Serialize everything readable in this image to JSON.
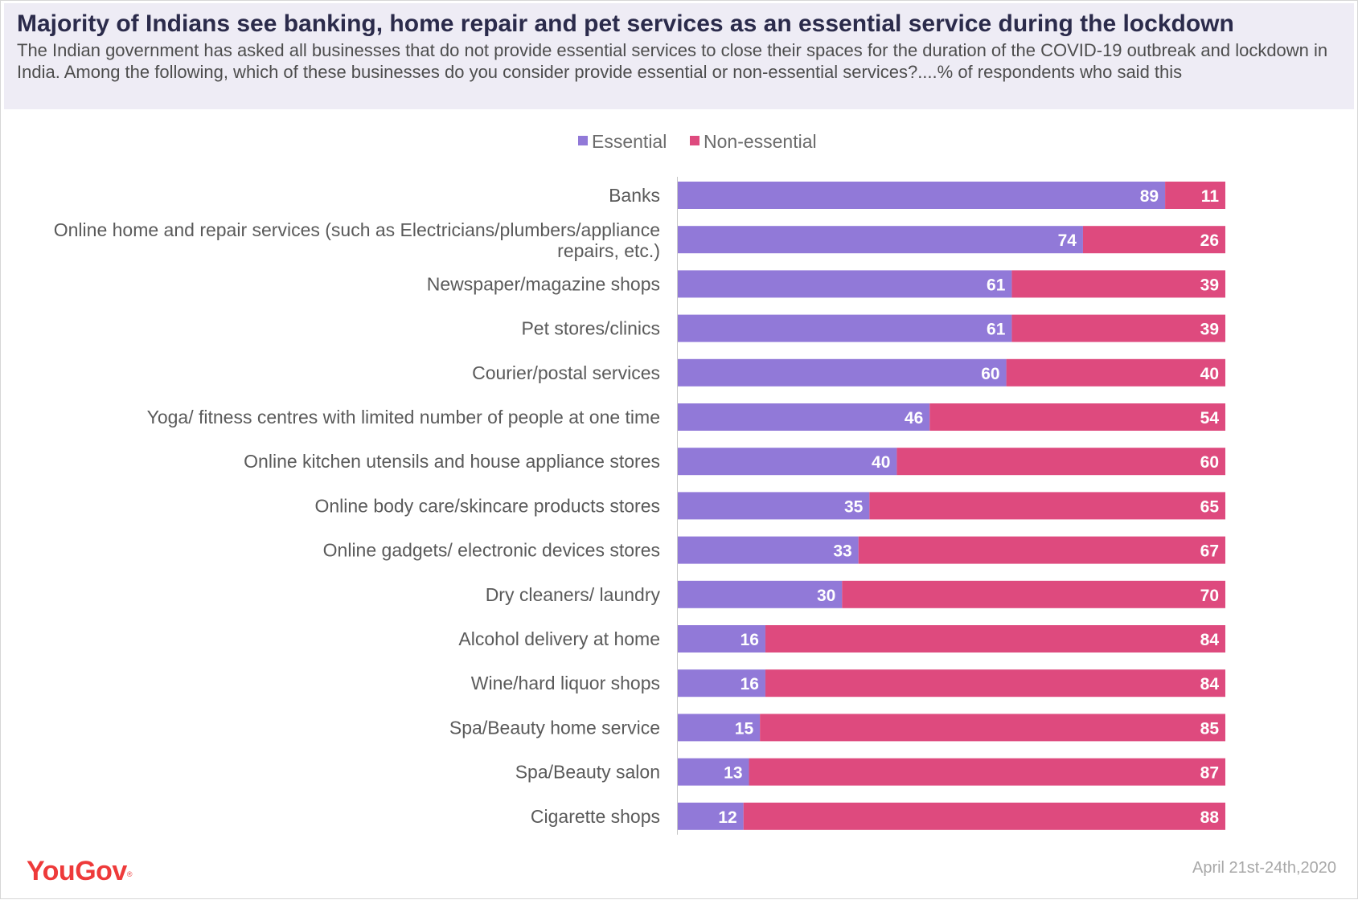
{
  "header": {
    "title": "Majority of Indians see banking, home repair and pet services  as an essential service during the lockdown",
    "subtitle": "The Indian government has asked all businesses that do not provide essential services to close their spaces for the duration of the COVID-19 outbreak and lockdown in India. Among the following, which of these businesses do you consider provide essential or non-essential services?....% of respondents who said this"
  },
  "footer": {
    "logo": "YouGov",
    "date": "April 21st-24th,2020"
  },
  "colors": {
    "essential": "#9179d8",
    "non_essential": "#de4a7e"
  },
  "chart_data": {
    "type": "bar",
    "orientation": "horizontal",
    "stacked": true,
    "xlim": [
      0,
      100
    ],
    "legend_position": "top-center",
    "grid": false,
    "categories": [
      "Banks",
      "Online home and repair services (such as Electricians/plumbers/appliance repairs, etc.)",
      "Newspaper/magazine shops",
      "Pet stores/clinics",
      "Courier/postal services",
      "Yoga/ fitness centres with limited number of people at one time",
      "Online kitchen utensils and house appliance stores",
      "Online body care/skincare products stores",
      "Online gadgets/ electronic devices stores",
      "Dry cleaners/ laundry",
      "Alcohol delivery at home",
      "Wine/hard liquor shops",
      "Spa/Beauty home service",
      "Spa/Beauty salon",
      "Cigarette shops"
    ],
    "series": [
      {
        "name": "Essential",
        "values": [
          89,
          74,
          61,
          61,
          60,
          46,
          40,
          35,
          33,
          30,
          16,
          16,
          15,
          13,
          12
        ]
      },
      {
        "name": "Non-essential",
        "values": [
          11,
          26,
          39,
          39,
          40,
          54,
          60,
          65,
          67,
          70,
          84,
          84,
          85,
          87,
          88
        ]
      }
    ]
  }
}
